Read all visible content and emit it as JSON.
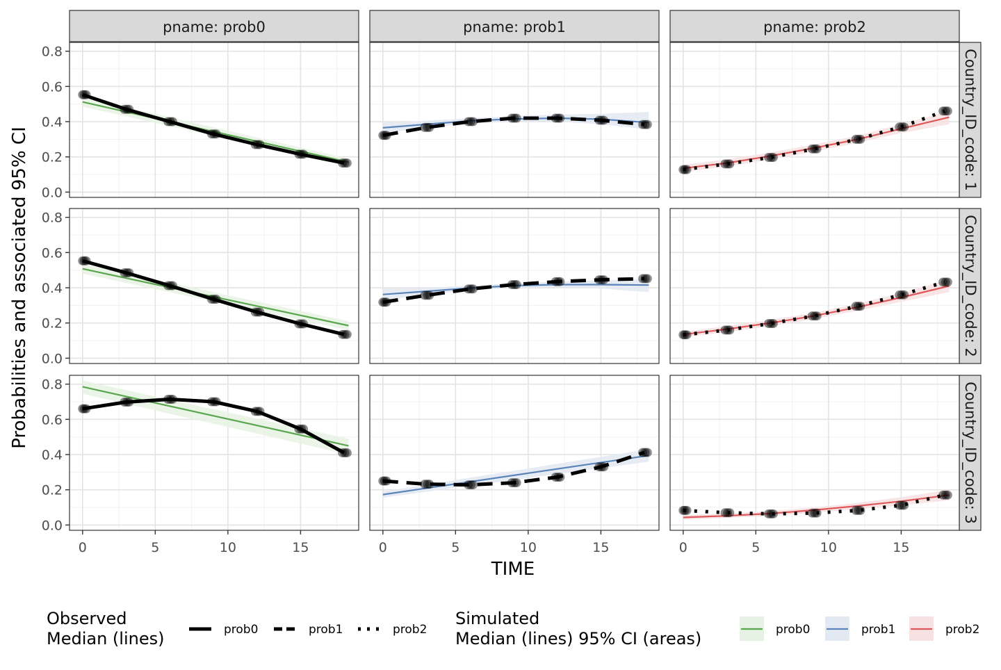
{
  "chart_data": {
    "type": "line",
    "facet_rows": [
      "Country_ID_code: 1",
      "Country_ID_code: 2",
      "Country_ID_code: 3"
    ],
    "facet_cols": [
      "pname: prob0",
      "pname: prob1",
      "pname: prob2"
    ],
    "xlabel": "TIME",
    "ylabel": "Probabilities and associated 95% CI",
    "xlim": [
      -0.9,
      19.0
    ],
    "ylim": [
      -0.03,
      0.85
    ],
    "x_ticks": [
      0,
      5,
      10,
      15
    ],
    "x_tick_labels": [
      "0",
      "5",
      "10",
      "15"
    ],
    "y_ticks": [
      0.0,
      0.2,
      0.4,
      0.6,
      0.8
    ],
    "y_tick_labels": [
      "0.0",
      "0.2",
      "0.4",
      "0.6",
      "0.8"
    ],
    "grid": true,
    "legend_position": "bottom",
    "legend_observed": {
      "title_line1": "Observed",
      "title_line2": "Median (lines)",
      "items": [
        {
          "label": "prob0",
          "linetype": "solid"
        },
        {
          "label": "prob1",
          "linetype": "dashed"
        },
        {
          "label": "prob2",
          "linetype": "dotted"
        }
      ]
    },
    "legend_simulated": {
      "title_line1": "Simulated",
      "title_line2": "Median (lines) 95% CI (areas)",
      "items": [
        {
          "label": "prob0",
          "color": "#5aa64f",
          "fill": "#e6f2e3"
        },
        {
          "label": "prob1",
          "color": "#5a84b9",
          "fill": "#e3e9f2"
        },
        {
          "label": "prob2",
          "color": "#e0575a",
          "fill": "#f7e2e3"
        }
      ]
    },
    "colors": {
      "prob0": "#5aa64f",
      "prob1": "#5a84b9",
      "prob2": "#e0575a",
      "observed": "#000000"
    },
    "observed_times": [
      0,
      0.25,
      3,
      6,
      6.25,
      9,
      9.25,
      12,
      12.25,
      15,
      15.25,
      18
    ],
    "panels": [
      {
        "row": 0,
        "col": 0,
        "x": [
          0,
          3,
          6,
          9,
          12,
          15,
          18
        ],
        "observed": [
          0.553,
          0.47,
          0.4,
          0.33,
          0.27,
          0.215,
          0.165
        ],
        "sim_x": [
          0,
          18.3
        ],
        "sim_median": [
          0.512,
          0.17
        ],
        "sim_lower": [
          0.485,
          0.15
        ],
        "sim_upper": [
          0.54,
          0.19
        ]
      },
      {
        "row": 0,
        "col": 1,
        "x": [
          0,
          3,
          6,
          9,
          12,
          15,
          18
        ],
        "observed": [
          0.322,
          0.367,
          0.4,
          0.42,
          0.42,
          0.408,
          0.384
        ],
        "sim_x": [
          0,
          3,
          6,
          9,
          12,
          15,
          18.3
        ],
        "sim_median": [
          0.365,
          0.385,
          0.405,
          0.415,
          0.42,
          0.414,
          0.395
        ],
        "sim_lower": [
          0.335,
          0.365,
          0.39,
          0.4,
          0.4,
          0.385,
          0.355
        ],
        "sim_upper": [
          0.395,
          0.405,
          0.42,
          0.432,
          0.44,
          0.445,
          0.455
        ]
      },
      {
        "row": 0,
        "col": 2,
        "x": [
          0,
          3,
          6,
          9,
          12,
          15,
          18
        ],
        "observed": [
          0.128,
          0.16,
          0.197,
          0.245,
          0.3,
          0.37,
          0.46
        ],
        "sim_x": [
          0,
          3,
          6,
          9,
          12,
          15,
          18.3
        ],
        "sim_median": [
          0.135,
          0.165,
          0.205,
          0.25,
          0.3,
          0.36,
          0.425
        ],
        "sim_lower": [
          0.115,
          0.145,
          0.185,
          0.23,
          0.28,
          0.335,
          0.385
        ],
        "sim_upper": [
          0.155,
          0.185,
          0.225,
          0.27,
          0.32,
          0.385,
          0.46
        ]
      },
      {
        "row": 1,
        "col": 0,
        "x": [
          0,
          3,
          6,
          9,
          12,
          15,
          18
        ],
        "observed": [
          0.553,
          0.485,
          0.412,
          0.335,
          0.262,
          0.195,
          0.135
        ],
        "sim_x": [
          0,
          18.3
        ],
        "sim_median": [
          0.508,
          0.185
        ],
        "sim_lower": [
          0.48,
          0.16
        ],
        "sim_upper": [
          0.535,
          0.21
        ]
      },
      {
        "row": 1,
        "col": 1,
        "x": [
          0,
          3,
          6,
          9,
          12,
          15,
          18
        ],
        "observed": [
          0.318,
          0.357,
          0.393,
          0.418,
          0.435,
          0.445,
          0.452
        ],
        "sim_x": [
          0,
          3,
          6,
          9,
          12,
          15,
          18.3
        ],
        "sim_median": [
          0.362,
          0.38,
          0.398,
          0.412,
          0.418,
          0.418,
          0.415
        ],
        "sim_lower": [
          0.33,
          0.36,
          0.385,
          0.4,
          0.402,
          0.395,
          0.375
        ],
        "sim_upper": [
          0.395,
          0.4,
          0.412,
          0.425,
          0.435,
          0.442,
          0.45
        ]
      },
      {
        "row": 1,
        "col": 2,
        "x": [
          0,
          3,
          6,
          9,
          12,
          15,
          18
        ],
        "observed": [
          0.133,
          0.16,
          0.197,
          0.24,
          0.295,
          0.36,
          0.432
        ],
        "sim_x": [
          0,
          3,
          6,
          9,
          12,
          15,
          18.3
        ],
        "sim_median": [
          0.135,
          0.165,
          0.2,
          0.24,
          0.29,
          0.345,
          0.41
        ],
        "sim_lower": [
          0.12,
          0.148,
          0.182,
          0.222,
          0.27,
          0.32,
          0.375
        ],
        "sim_upper": [
          0.15,
          0.182,
          0.218,
          0.258,
          0.31,
          0.37,
          0.445
        ]
      },
      {
        "row": 2,
        "col": 0,
        "x": [
          0,
          3,
          6,
          9,
          12,
          15,
          18
        ],
        "observed": [
          0.66,
          0.698,
          0.714,
          0.7,
          0.645,
          0.545,
          0.41
        ],
        "sim_x": [
          0,
          18.3
        ],
        "sim_median": [
          0.785,
          0.45
        ],
        "sim_lower": [
          0.745,
          0.4
        ],
        "sim_upper": [
          0.82,
          0.49
        ]
      },
      {
        "row": 2,
        "col": 1,
        "x": [
          0,
          3,
          6,
          9,
          12,
          15,
          18
        ],
        "observed": [
          0.25,
          0.232,
          0.228,
          0.24,
          0.272,
          0.33,
          0.412
        ],
        "sim_x": [
          0,
          18.3
        ],
        "sim_median": [
          0.173,
          0.395
        ],
        "sim_lower": [
          0.155,
          0.36
        ],
        "sim_upper": [
          0.19,
          0.43
        ]
      },
      {
        "row": 2,
        "col": 2,
        "x": [
          0,
          3,
          6,
          9,
          12,
          15,
          18
        ],
        "observed": [
          0.083,
          0.07,
          0.063,
          0.068,
          0.083,
          0.112,
          0.17
        ],
        "sim_x": [
          0,
          3,
          6,
          9,
          12,
          15,
          18.3
        ],
        "sim_median": [
          0.043,
          0.052,
          0.065,
          0.085,
          0.108,
          0.135,
          0.17
        ],
        "sim_lower": [
          0.03,
          0.04,
          0.052,
          0.07,
          0.09,
          0.112,
          0.14
        ],
        "sim_upper": [
          0.056,
          0.066,
          0.08,
          0.1,
          0.126,
          0.158,
          0.2
        ]
      }
    ]
  }
}
